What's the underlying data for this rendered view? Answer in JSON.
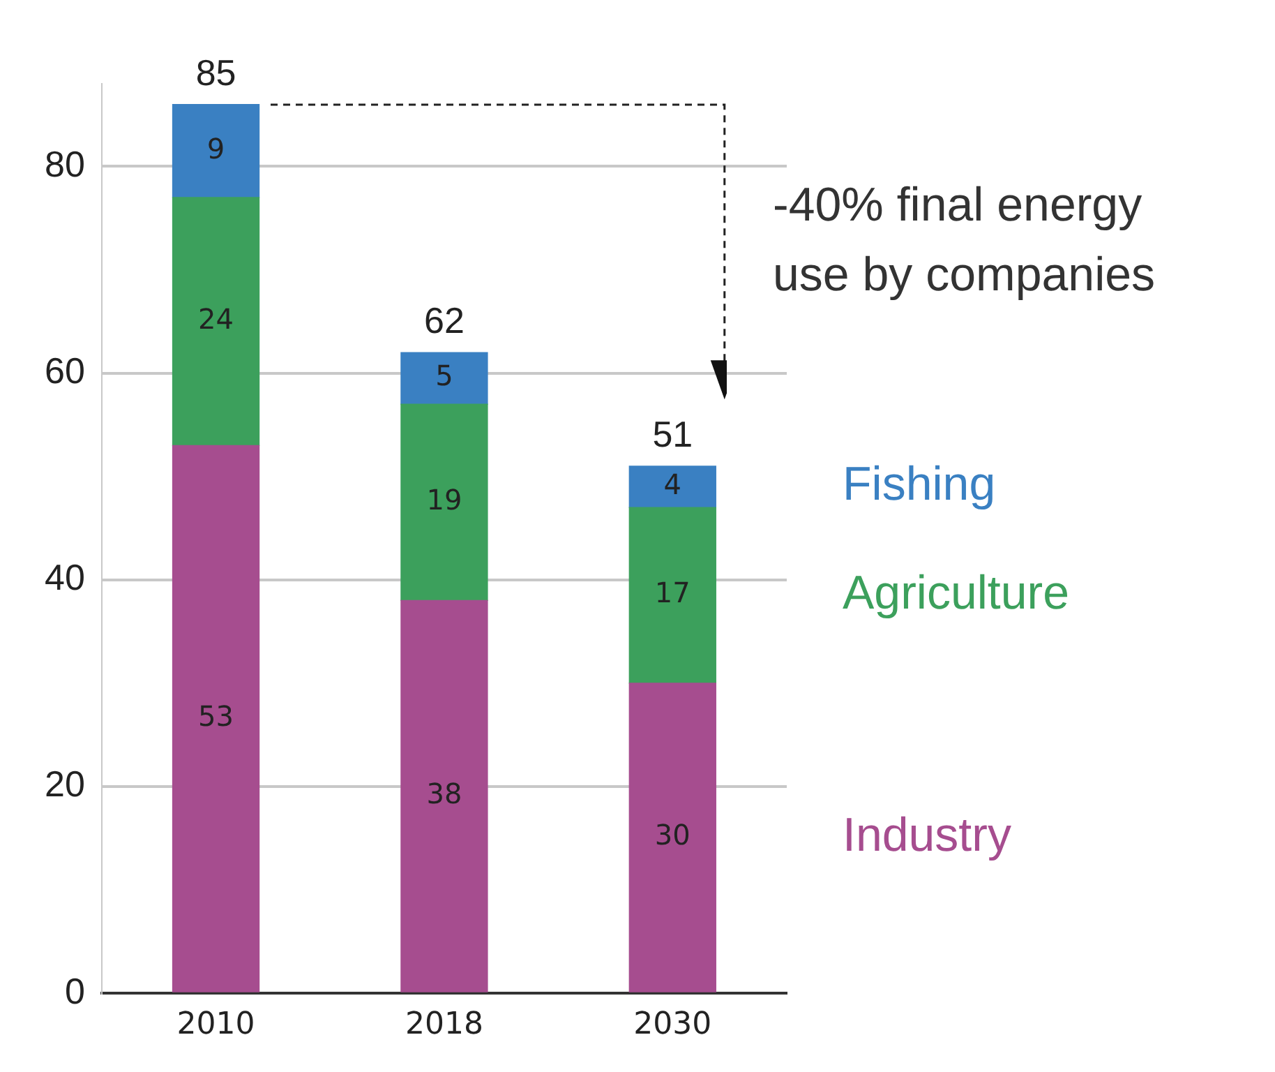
{
  "chart_data": {
    "type": "bar",
    "stacked": true,
    "categories": [
      "2010",
      "2018",
      "2030"
    ],
    "series": [
      {
        "name": "Industry",
        "color": "#a64d8f",
        "values": [
          53,
          38,
          30
        ]
      },
      {
        "name": "Agriculture",
        "color": "#3ca05c",
        "values": [
          24,
          19,
          17
        ]
      },
      {
        "name": "Fishing",
        "color": "#3a80c2",
        "values": [
          9,
          5,
          4
        ]
      }
    ],
    "ylim": [
      0,
      88
    ],
    "yticks": [
      0,
      20,
      40,
      60,
      80
    ],
    "grid": "y",
    "legend": "right",
    "data_labels": true,
    "totals": [
      "85",
      "62",
      "51"
    ],
    "annotations": [
      "-40% final energy use by companies"
    ]
  }
}
